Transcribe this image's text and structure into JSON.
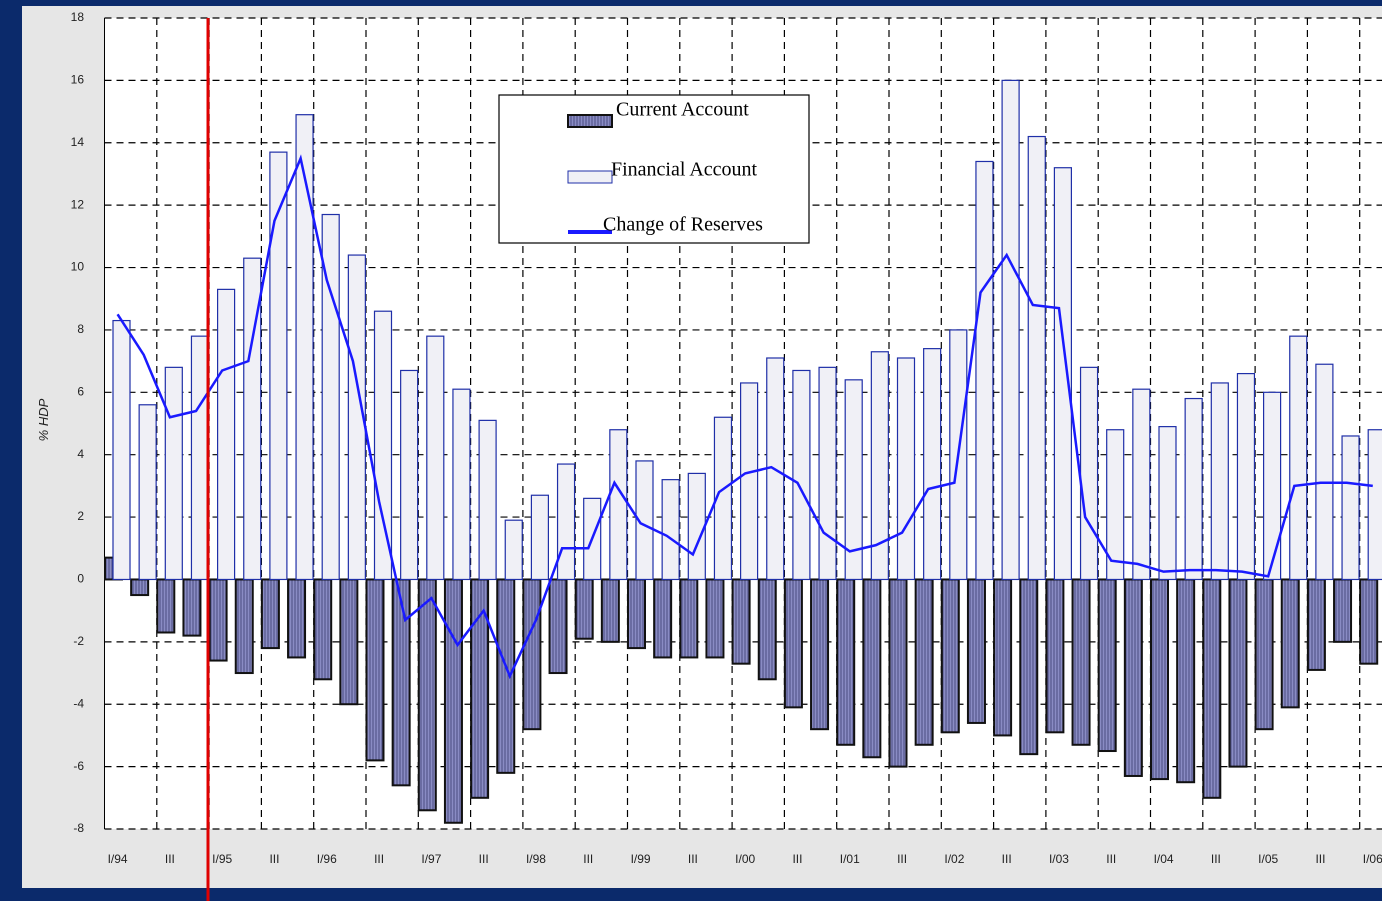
{
  "chart_data": {
    "type": "bar",
    "y_label": "% HDP",
    "categories": [
      "I/94",
      null,
      "III",
      null,
      "I/95",
      null,
      "III",
      null,
      "I/96",
      null,
      "III",
      null,
      "I/97",
      null,
      "III",
      null,
      "I/98",
      null,
      "III",
      null,
      "I/99",
      null,
      "III",
      null,
      "I/00",
      null,
      "III",
      null,
      "I/01",
      null,
      "III",
      null,
      "I/02",
      null,
      "III",
      null,
      "I/03",
      null,
      "III",
      null,
      "I/04",
      null,
      "III",
      null,
      "I/05",
      null,
      "III",
      null,
      "I/06"
    ],
    "series": [
      {
        "name": "Current Account",
        "type": "bar",
        "color": "#8a8cc4",
        "values": [
          0.7,
          -0.5,
          -1.7,
          -1.8,
          -2.6,
          -3.0,
          -2.2,
          -2.5,
          -3.2,
          -4.0,
          -5.8,
          -6.6,
          -7.4,
          -7.8,
          -7.0,
          -6.2,
          -4.8,
          -3.0,
          -1.9,
          -2.0,
          -2.2,
          -2.5,
          -2.5,
          -2.5,
          -2.7,
          -3.2,
          -4.1,
          -4.8,
          -5.3,
          -5.7,
          -6.0,
          -5.3,
          -4.9,
          -4.6,
          -5.0,
          -5.6,
          -4.9,
          -5.3,
          -5.5,
          -6.3,
          -6.4,
          -6.5,
          -7.0,
          -6.0,
          -4.8,
          -4.1,
          -2.9,
          -2.0,
          -2.7
        ]
      },
      {
        "name": "Financial Account",
        "type": "bar",
        "color": "#f0f0f6",
        "values": [
          8.3,
          5.6,
          6.8,
          7.8,
          9.3,
          10.3,
          13.7,
          14.9,
          11.7,
          10.4,
          8.6,
          6.7,
          7.8,
          6.1,
          5.1,
          1.9,
          2.7,
          3.7,
          2.6,
          4.8,
          3.8,
          3.2,
          3.4,
          5.2,
          6.3,
          7.1,
          6.7,
          6.8,
          6.4,
          7.3,
          7.1,
          7.4,
          8.0,
          13.4,
          16.0,
          14.2,
          13.2,
          6.8,
          4.8,
          6.1,
          4.9,
          5.8,
          6.3,
          6.6,
          6.0,
          7.8,
          6.9,
          4.6,
          4.8
        ]
      },
      {
        "name": "Change of Reserves",
        "type": "line",
        "color": "#1a1aff",
        "values": [
          8.5,
          7.2,
          5.2,
          5.4,
          6.7,
          7.0,
          11.5,
          13.5,
          9.6,
          7.0,
          2.5,
          -1.3,
          -0.6,
          -2.1,
          -1.0,
          -3.1,
          -1.3,
          1.0,
          1.0,
          3.1,
          1.8,
          1.4,
          0.8,
          2.8,
          3.4,
          3.6,
          3.1,
          1.5,
          0.9,
          1.1,
          1.5,
          2.9,
          3.1,
          9.2,
          10.4,
          8.8,
          8.7,
          2.0,
          0.6,
          0.5,
          0.25,
          0.3,
          0.3,
          0.25,
          0.1,
          3.0,
          3.1,
          3.1,
          3.0
        ]
      }
    ],
    "ylim": [
      -8,
      18
    ],
    "yticks": [
      -8,
      -6,
      -4,
      -2,
      0,
      2,
      4,
      6,
      8,
      10,
      12,
      14,
      16,
      18
    ],
    "grid": true
  }
}
